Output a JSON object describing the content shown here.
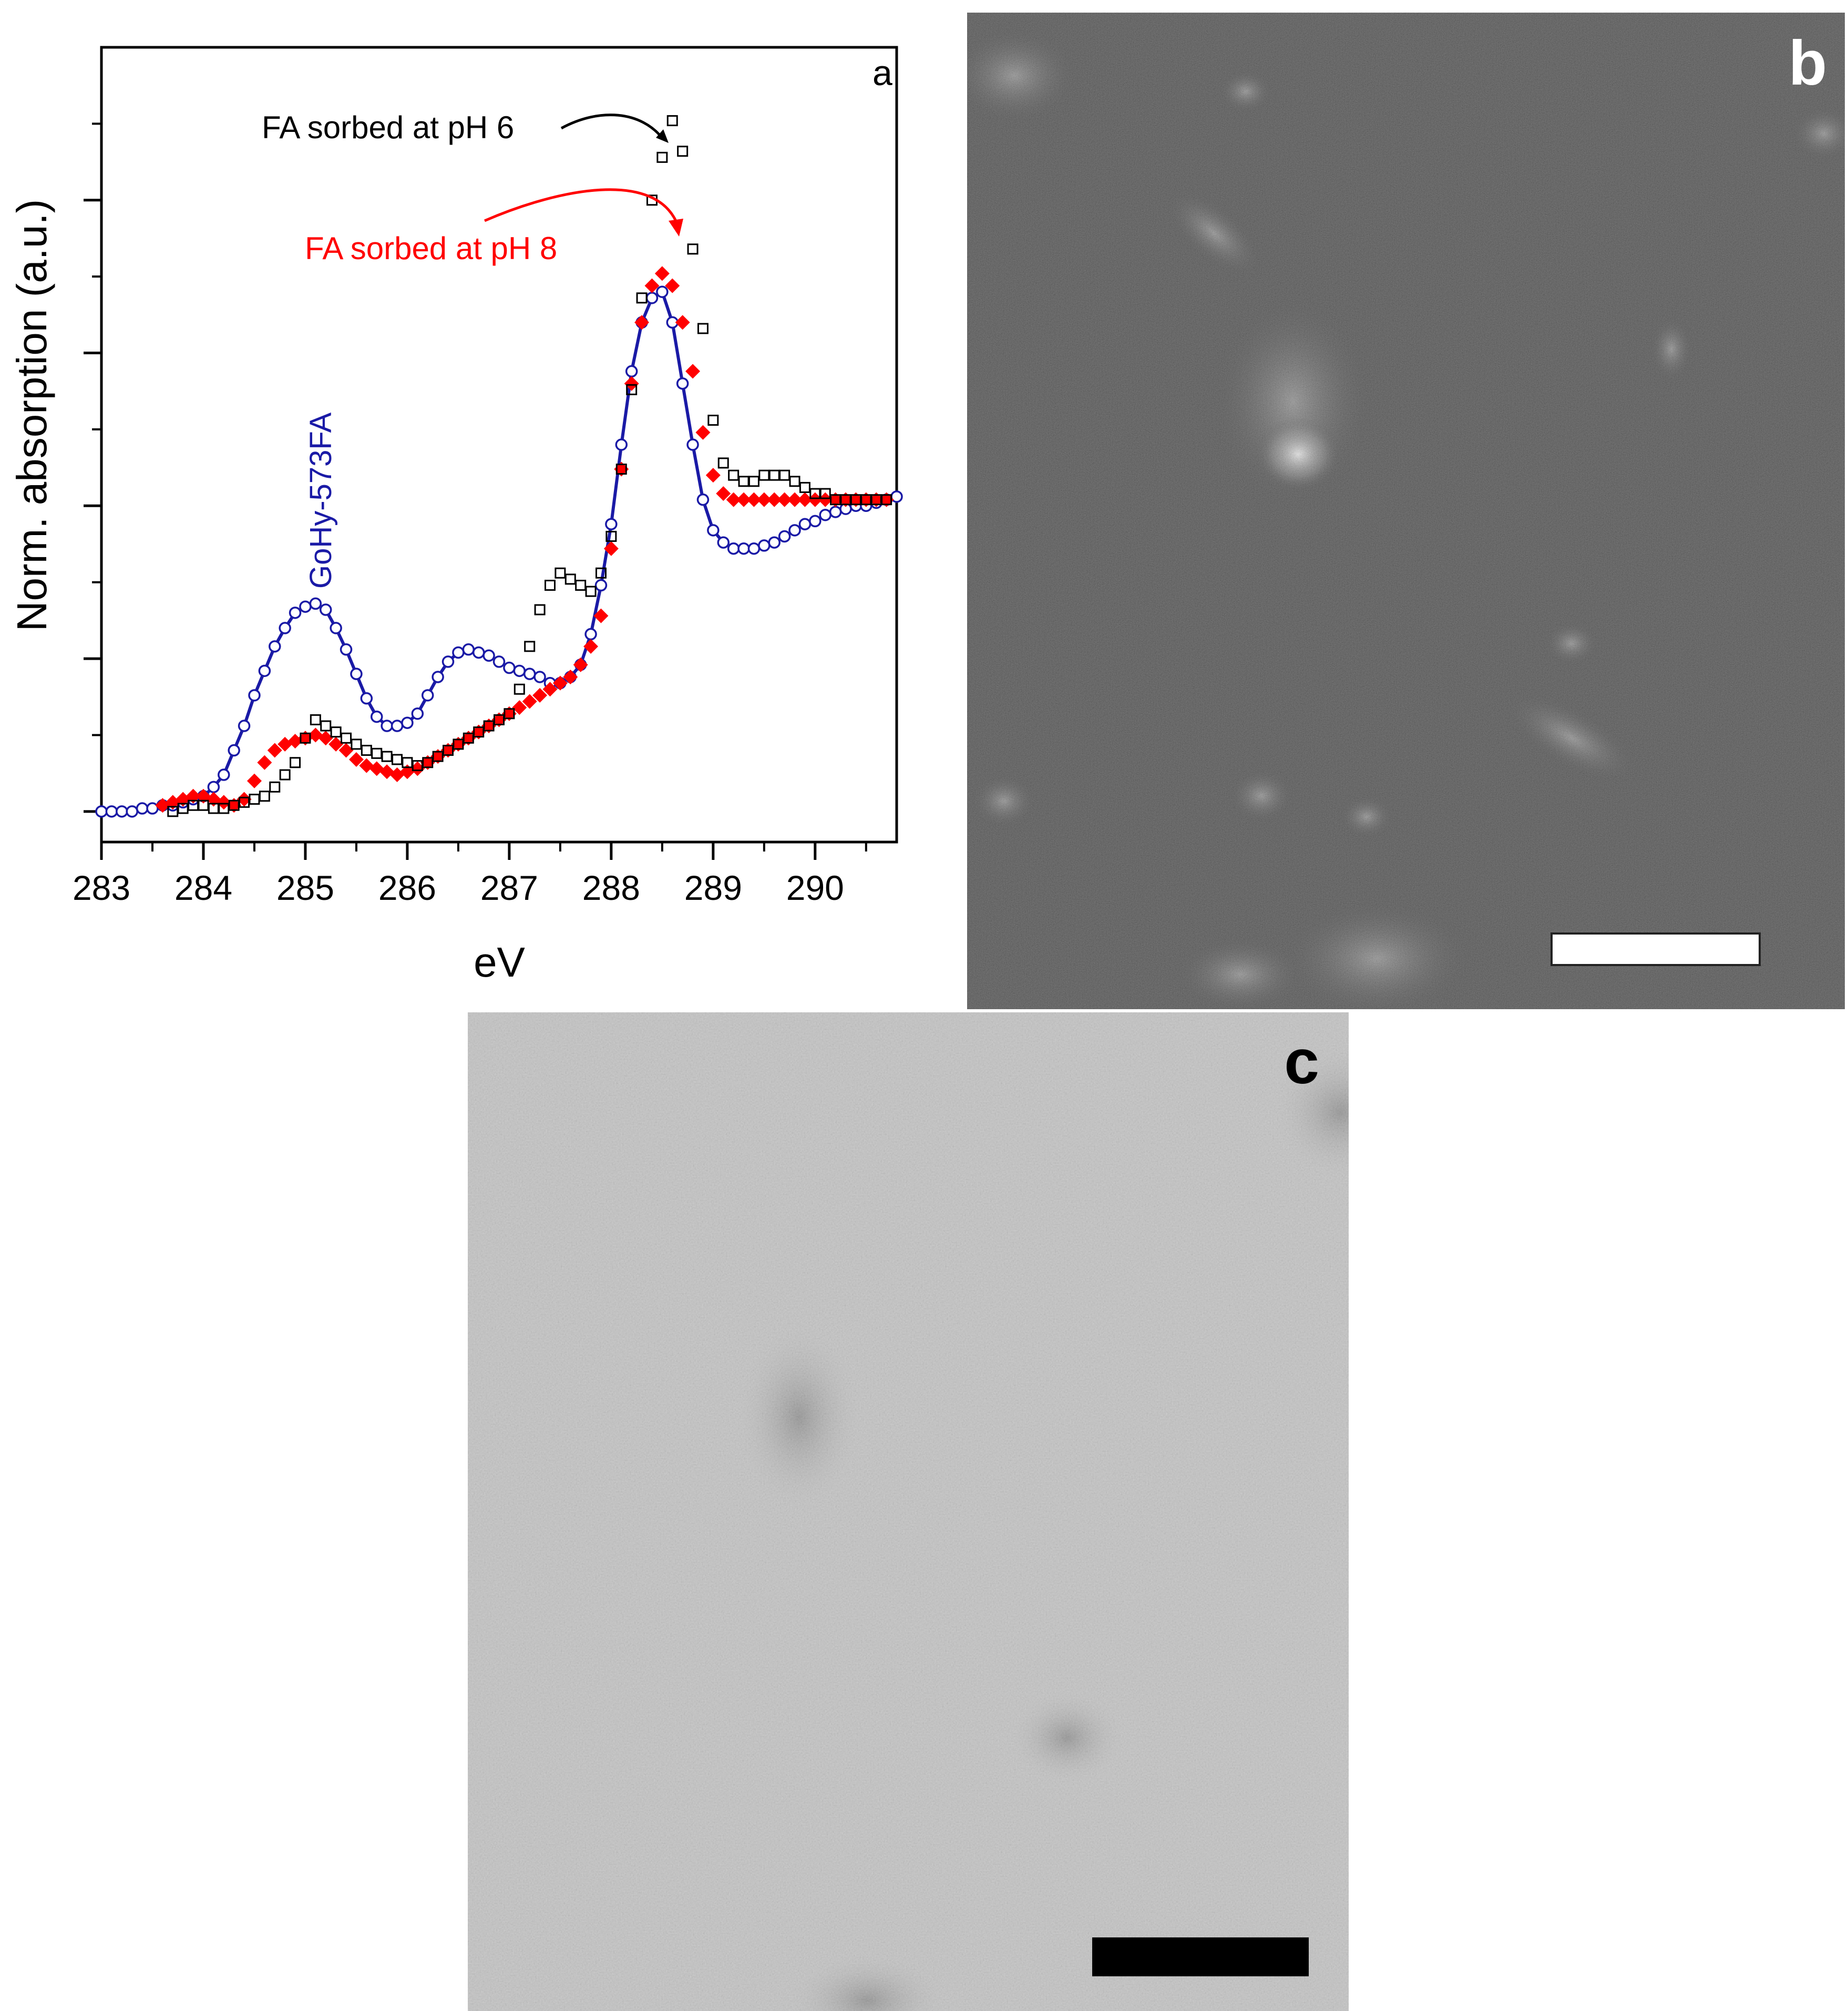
{
  "chart_data": {
    "type": "scatter",
    "panel_label": "a",
    "xlabel": "eV",
    "ylabel": "Norm. absorption (a.u.)",
    "xlim": [
      283,
      290.8
    ],
    "ylim": [
      -0.05,
      1.25
    ],
    "x_tick_labels": [
      "283",
      "284",
      "285",
      "286",
      "287",
      "288",
      "289",
      "290"
    ],
    "x_ticks": [
      283,
      284,
      285,
      286,
      287,
      288,
      289,
      290
    ],
    "y_major_ticks": [
      0,
      0.25,
      0.5,
      0.75,
      1.0
    ],
    "y_tick_labels_shown": false,
    "annotations": [
      {
        "text": "FA sorbed at pH 6",
        "color": "#000000"
      },
      {
        "text": "FA sorbed at pH 8",
        "color": "#ff0000"
      },
      {
        "text": "GoHy-573FA",
        "color": "#1a1aa6"
      }
    ],
    "colors": {
      "goethite_line": "#1a1aa6",
      "ph8_marker": "#ff0000",
      "ph6_marker": "#000000"
    },
    "series": [
      {
        "marker": "open-circle",
        "with_line": true,
        "color": "#1a1aa6",
        "x": [
          283.0,
          283.1,
          283.2,
          283.3,
          283.4,
          283.5,
          283.6,
          283.7,
          283.8,
          283.9,
          284.0,
          284.1,
          284.2,
          284.3,
          284.4,
          284.5,
          284.6,
          284.7,
          284.8,
          284.9,
          285.0,
          285.1,
          285.2,
          285.3,
          285.4,
          285.5,
          285.6,
          285.7,
          285.8,
          285.9,
          286.0,
          286.1,
          286.2,
          286.3,
          286.4,
          286.5,
          286.6,
          286.7,
          286.8,
          286.9,
          287.0,
          287.1,
          287.2,
          287.3,
          287.4,
          287.5,
          287.6,
          287.7,
          287.8,
          287.9,
          288.0,
          288.1,
          288.2,
          288.3,
          288.4,
          288.5,
          288.6,
          288.7,
          288.8,
          288.9,
          289.0,
          289.1,
          289.2,
          289.3,
          289.4,
          289.5,
          289.6,
          289.7,
          289.8,
          289.9,
          290.0,
          290.1,
          290.2,
          290.3,
          290.4,
          290.5,
          290.6,
          290.7,
          290.8
        ],
        "y": [
          0.0,
          0.0,
          0.0,
          0.0,
          0.005,
          0.005,
          0.01,
          0.01,
          0.015,
          0.02,
          0.025,
          0.04,
          0.06,
          0.1,
          0.14,
          0.19,
          0.23,
          0.27,
          0.3,
          0.325,
          0.335,
          0.34,
          0.33,
          0.3,
          0.265,
          0.225,
          0.185,
          0.155,
          0.14,
          0.14,
          0.145,
          0.16,
          0.19,
          0.22,
          0.245,
          0.26,
          0.265,
          0.26,
          0.255,
          0.245,
          0.235,
          0.23,
          0.225,
          0.22,
          0.21,
          0.21,
          0.22,
          0.24,
          0.29,
          0.37,
          0.47,
          0.6,
          0.72,
          0.8,
          0.84,
          0.85,
          0.8,
          0.7,
          0.6,
          0.51,
          0.46,
          0.44,
          0.43,
          0.43,
          0.43,
          0.435,
          0.44,
          0.45,
          0.46,
          0.47,
          0.475,
          0.485,
          0.49,
          0.495,
          0.5,
          0.5,
          0.505,
          0.51,
          0.515
        ]
      },
      {
        "marker": "filled-diamond",
        "with_line": false,
        "color": "#ff0000",
        "x": [
          283.6,
          283.7,
          283.8,
          283.9,
          284.0,
          284.1,
          284.2,
          284.3,
          284.4,
          284.5,
          284.6,
          284.7,
          284.8,
          284.9,
          285.0,
          285.1,
          285.2,
          285.3,
          285.4,
          285.5,
          285.6,
          285.7,
          285.8,
          285.9,
          286.0,
          286.1,
          286.2,
          286.3,
          286.4,
          286.5,
          286.6,
          286.7,
          286.8,
          286.9,
          287.0,
          287.1,
          287.2,
          287.3,
          287.4,
          287.5,
          287.6,
          287.7,
          287.8,
          287.9,
          288.0,
          288.1,
          288.2,
          288.3,
          288.4,
          288.5,
          288.6,
          288.7,
          288.8,
          288.9,
          289.0,
          289.1,
          289.2,
          289.3,
          289.4,
          289.5,
          289.6,
          289.7,
          289.8,
          289.9,
          290.0,
          290.1,
          290.2,
          290.3,
          290.4,
          290.5,
          290.6,
          290.7
        ],
        "y": [
          0.01,
          0.015,
          0.02,
          0.025,
          0.025,
          0.02,
          0.015,
          0.01,
          0.02,
          0.05,
          0.08,
          0.1,
          0.11,
          0.115,
          0.12,
          0.125,
          0.12,
          0.11,
          0.1,
          0.085,
          0.075,
          0.07,
          0.065,
          0.06,
          0.065,
          0.07,
          0.08,
          0.09,
          0.1,
          0.11,
          0.12,
          0.13,
          0.14,
          0.15,
          0.16,
          0.17,
          0.18,
          0.19,
          0.2,
          0.21,
          0.22,
          0.24,
          0.27,
          0.32,
          0.43,
          0.56,
          0.7,
          0.8,
          0.86,
          0.88,
          0.86,
          0.8,
          0.72,
          0.62,
          0.55,
          0.52,
          0.51,
          0.51,
          0.51,
          0.51,
          0.51,
          0.51,
          0.51,
          0.51,
          0.51,
          0.51,
          0.51,
          0.51,
          0.51,
          0.51,
          0.51,
          0.51
        ]
      },
      {
        "marker": "open-square",
        "with_line": false,
        "color": "#000000",
        "x": [
          283.7,
          283.8,
          283.9,
          284.0,
          284.1,
          284.2,
          284.3,
          284.4,
          284.5,
          284.6,
          284.7,
          284.8,
          284.9,
          285.0,
          285.1,
          285.2,
          285.3,
          285.4,
          285.5,
          285.6,
          285.7,
          285.8,
          285.9,
          286.0,
          286.1,
          286.2,
          286.3,
          286.4,
          286.5,
          286.6,
          286.7,
          286.8,
          286.9,
          287.0,
          287.1,
          287.2,
          287.3,
          287.4,
          287.5,
          287.6,
          287.7,
          287.8,
          287.9,
          288.0,
          288.1,
          288.2,
          288.3,
          288.4,
          288.5,
          288.6,
          288.7,
          288.8,
          288.9,
          289.0,
          289.1,
          289.2,
          289.3,
          289.4,
          289.5,
          289.6,
          289.7,
          289.8,
          289.9,
          290.0,
          290.1,
          290.2,
          290.3,
          290.4,
          290.5,
          290.6,
          290.7
        ],
        "y": [
          0.0,
          0.005,
          0.01,
          0.01,
          0.005,
          0.005,
          0.01,
          0.015,
          0.02,
          0.025,
          0.04,
          0.06,
          0.08,
          0.12,
          0.15,
          0.14,
          0.13,
          0.12,
          0.11,
          0.1,
          0.095,
          0.09,
          0.085,
          0.08,
          0.075,
          0.08,
          0.09,
          0.1,
          0.11,
          0.12,
          0.13,
          0.14,
          0.15,
          0.16,
          0.2,
          0.27,
          0.33,
          0.37,
          0.39,
          0.38,
          0.37,
          0.36,
          0.39,
          0.45,
          0.56,
          0.69,
          0.84,
          1.0,
          1.07,
          1.13,
          1.08,
          0.92,
          0.79,
          0.64,
          0.57,
          0.55,
          0.54,
          0.54,
          0.55,
          0.55,
          0.55,
          0.54,
          0.53,
          0.52,
          0.52,
          0.51,
          0.51,
          0.51,
          0.51,
          0.51,
          0.51
        ]
      }
    ]
  },
  "panels": {
    "b": {
      "label": "b"
    },
    "c": {
      "label": "c"
    }
  }
}
